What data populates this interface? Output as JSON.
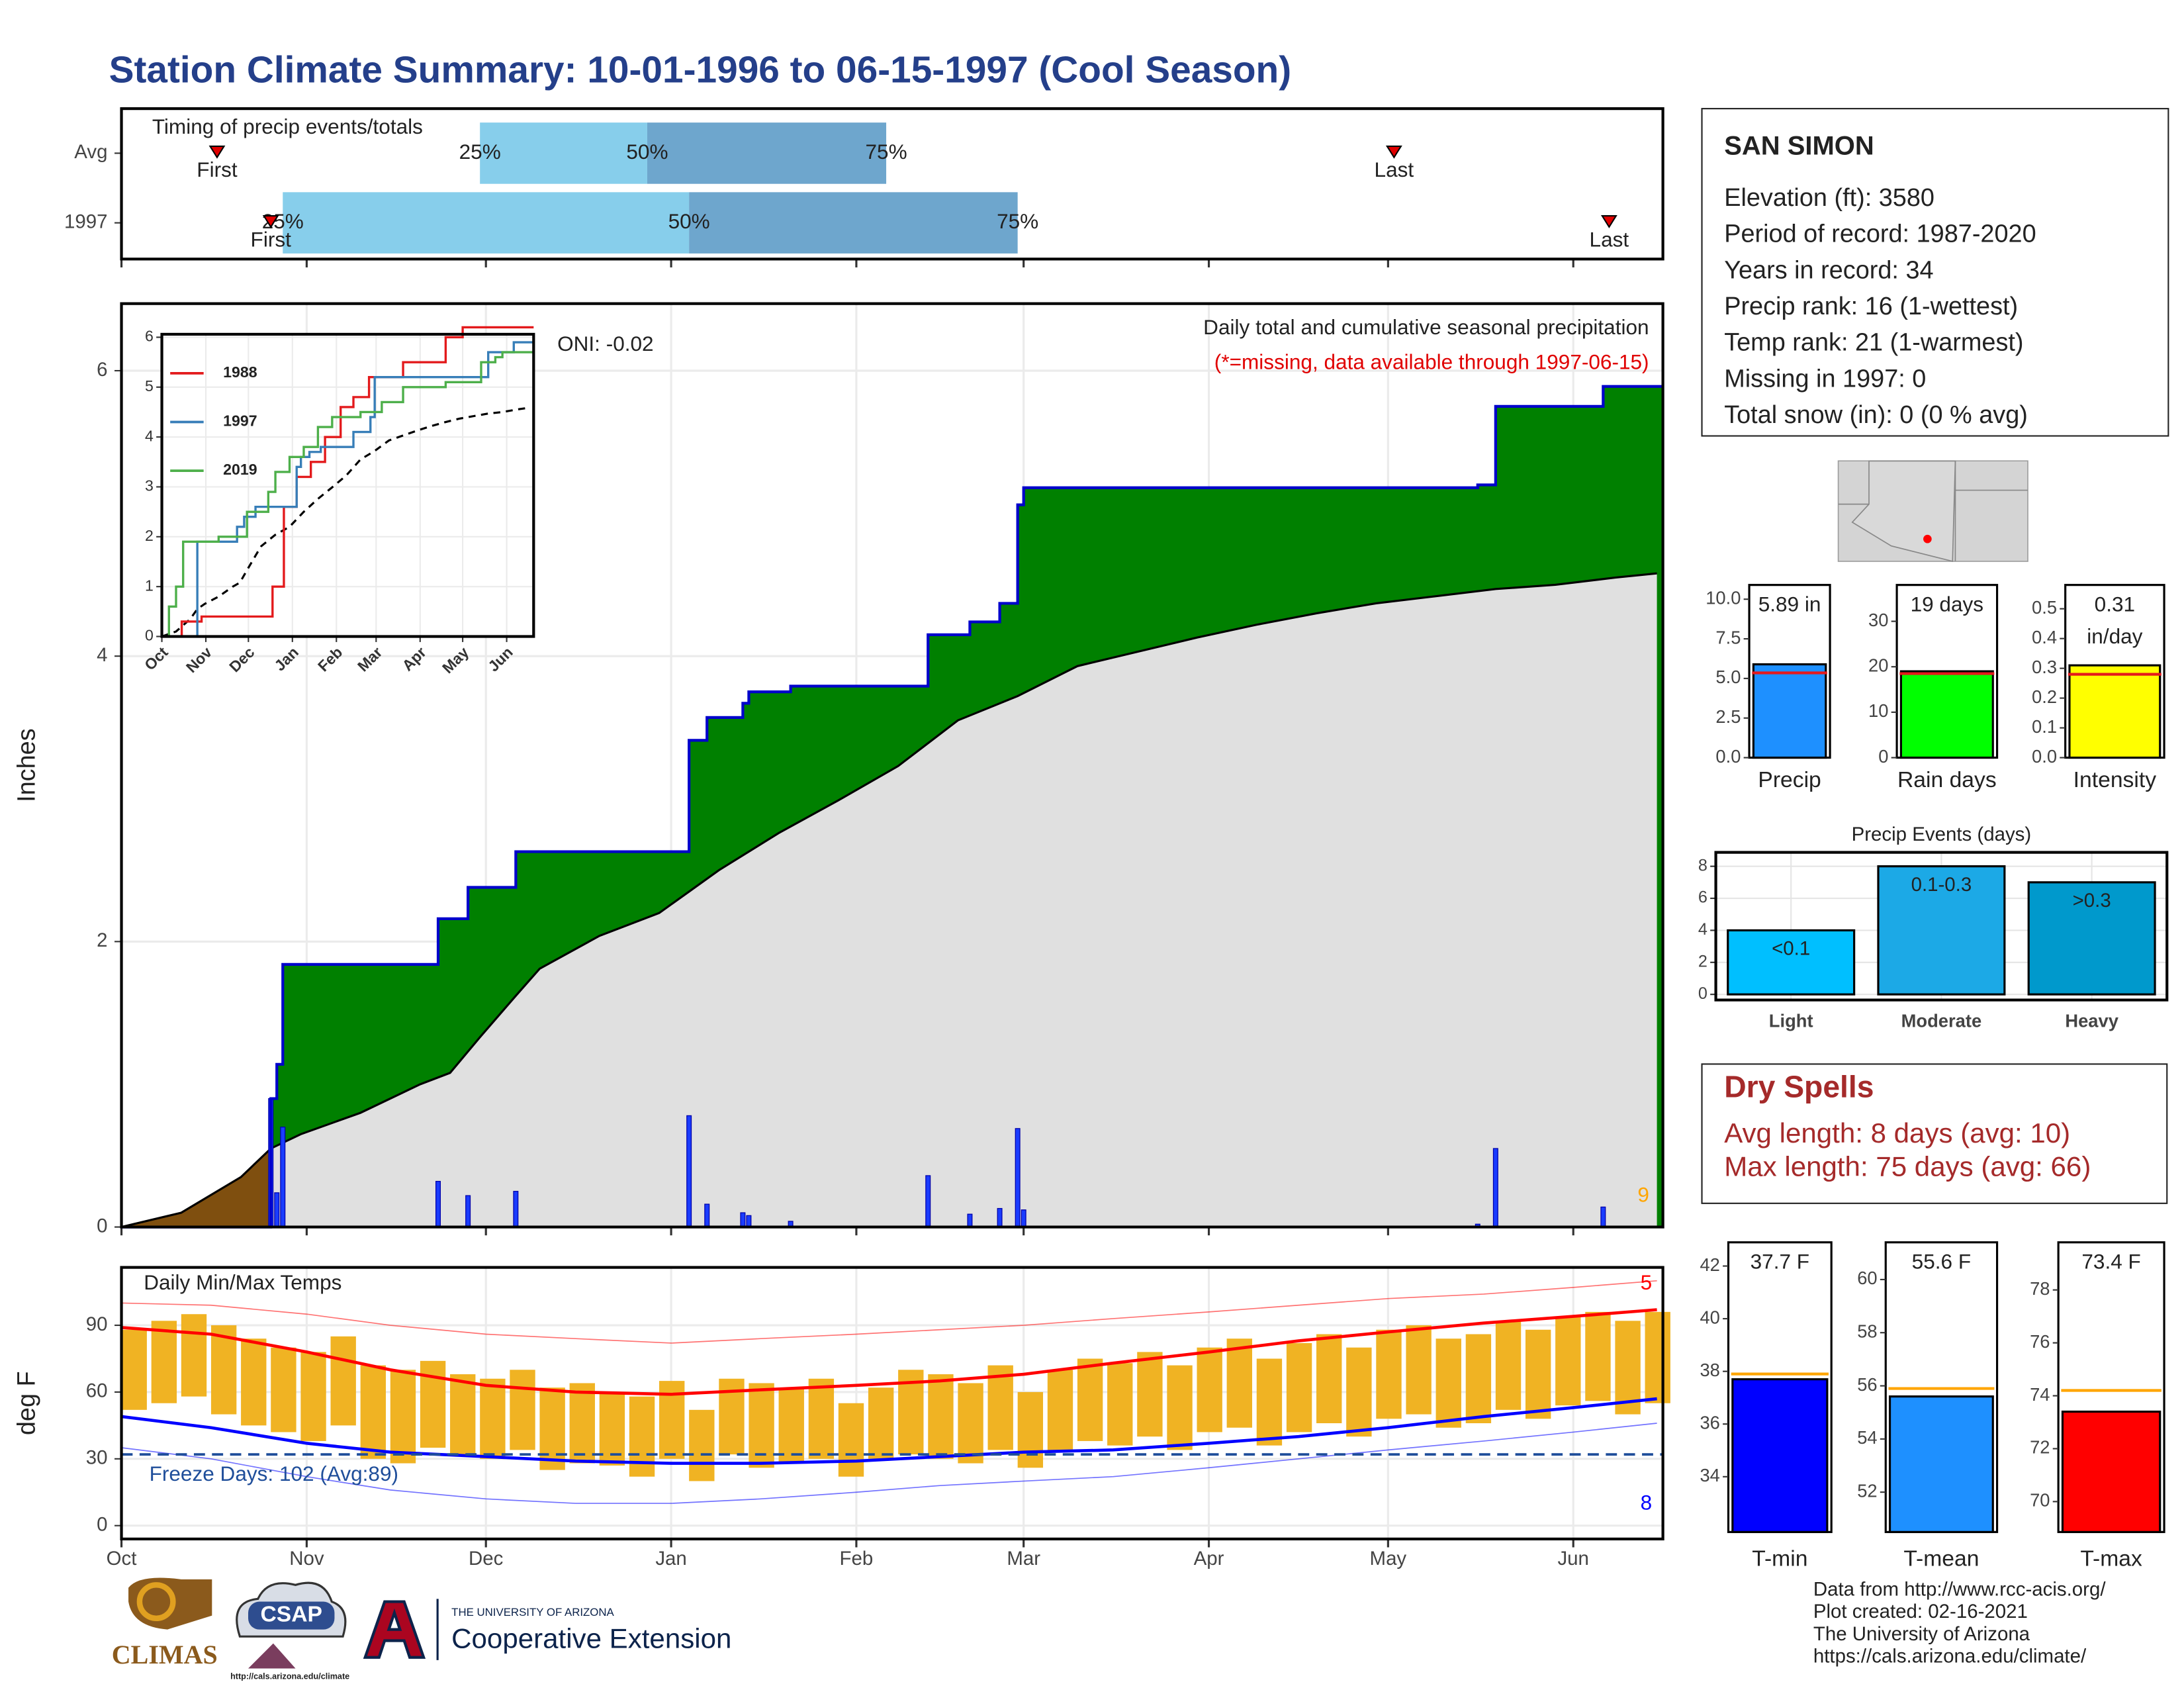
{
  "title": "Station Climate Summary: 10-01-1996 to 06-15-1997 (Cool Season)",
  "station": {
    "name": "SAN SIMON",
    "lines": [
      "Elevation (ft): 3580",
      "Period of record: 1987-2020",
      "Years in record: 34",
      "Precip rank: 16 (1-wettest)",
      "Temp rank: 21 (1-warmest)",
      "Missing in 1997: 0",
      "Total snow (in): 0 (0 % avg)"
    ]
  },
  "dry_spells": {
    "title": "Dry Spells",
    "lines": [
      "Avg length: 8 days (avg: 10)",
      "Max length: 75 days (avg: 66)"
    ]
  },
  "footer": [
    "Data from http://www.rcc-acis.org/",
    "Plot created: 02-16-2021",
    "The University of Arizona",
    "https://cals.arizona.edu/climate/"
  ],
  "logos": {
    "climas": "CLIMAS",
    "csap": "CSAP",
    "csap_url": "http://cals.arizona.edu/climate",
    "university": "THE UNIVERSITY OF ARIZONA",
    "extension": "Cooperative Extension"
  },
  "chart_data": [
    {
      "type": "timeline",
      "title": "Timing of precip events/totals",
      "rows": [
        "Avg",
        "1997"
      ],
      "labels": {
        "first": "First",
        "last": "Last",
        "q25": "25%",
        "q50": "50%",
        "q75": "75%"
      },
      "events": [
        {
          "first": 16,
          "q25": 60,
          "q50": 88,
          "q75": 128,
          "last": 213
        },
        {
          "first": 25,
          "q25": 27,
          "q50": 95,
          "q75": 150,
          "last": 249
        }
      ],
      "colors": [
        "#87ceeb",
        "#6ea6cd"
      ],
      "marker_color": "#e00000",
      "xlim": [
        0,
        258
      ],
      "xticks": [
        0,
        31,
        61,
        92,
        123,
        151,
        182,
        212,
        243
      ]
    },
    {
      "type": "area",
      "ylabel": "Inches",
      "annotation": "ONI: -0.02",
      "subtitle": "Daily total and cumulative seasonal precipitation",
      "note": "(*=missing, data available through 1997-06-15)",
      "count": 9,
      "xlim": [
        0,
        258
      ],
      "xticks": [
        0,
        31,
        61,
        92,
        123,
        151,
        182,
        212,
        243
      ],
      "ylim": [
        0,
        6.47
      ],
      "yticks": [
        0,
        2,
        4,
        6
      ],
      "grid": true,
      "event_days": [
        25,
        26,
        27,
        53,
        58,
        66,
        95,
        98,
        104,
        105,
        112,
        135,
        142,
        147,
        150,
        151,
        227,
        230,
        248
      ],
      "event_values": [
        0.9,
        0.24,
        0.7,
        0.32,
        0.22,
        0.25,
        0.78,
        0.16,
        0.1,
        0.08,
        0.04,
        0.36,
        0.09,
        0.13,
        0.69,
        0.12,
        0.02,
        0.55,
        0.14
      ],
      "avg_days": [
        0,
        10,
        20,
        25,
        30,
        40,
        50,
        55,
        60,
        66,
        70,
        80,
        90,
        95,
        100,
        110,
        120,
        130,
        140,
        150,
        160,
        170,
        180,
        190,
        200,
        210,
        220,
        230,
        240,
        250,
        257
      ],
      "avg_values": [
        0,
        0.1,
        0.35,
        0.55,
        0.65,
        0.8,
        1.0,
        1.08,
        1.33,
        1.62,
        1.81,
        2.04,
        2.2,
        2.35,
        2.5,
        2.76,
        2.99,
        3.23,
        3.55,
        3.72,
        3.93,
        4.03,
        4.13,
        4.22,
        4.3,
        4.37,
        4.42,
        4.47,
        4.5,
        4.55,
        4.58
      ],
      "bar_color": "#1a3cff",
      "line_color": "#0000cc",
      "above_color": "#008000",
      "below_color": "#7f4f0f",
      "avg_fill": "#e0e0e0",
      "count_color": "#ffa500"
    },
    {
      "type": "line",
      "xlim": [
        0,
        262
      ],
      "ylim": [
        0,
        6.06
      ],
      "yticks": [
        0,
        1,
        2,
        3,
        4,
        5,
        6
      ],
      "xticks": [
        {
          "value": 0,
          "label": "Oct"
        },
        {
          "value": 31,
          "label": "Nov"
        },
        {
          "value": 61,
          "label": "Dec"
        },
        {
          "value": 92,
          "label": "Jan"
        },
        {
          "value": 123,
          "label": "Feb"
        },
        {
          "value": 151,
          "label": "Mar"
        },
        {
          "value": 182,
          "label": "Apr"
        },
        {
          "value": 212,
          "label": "May"
        },
        {
          "value": 243,
          "label": "Jun"
        }
      ],
      "series": [
        {
          "name": "1988",
          "color": "#e31a1c",
          "x": [
            0,
            11,
            14,
            28,
            76,
            78,
            86,
            95,
            105,
            115,
            126,
            135,
            146,
            170,
            198,
            200,
            212,
            262
          ],
          "values": [
            0,
            0,
            0.3,
            0.4,
            0.4,
            1.0,
            2.6,
            3.2,
            3.5,
            4.0,
            4.6,
            4.8,
            5.2,
            5.5,
            5.5,
            6.0,
            6.2,
            6.2
          ]
        },
        {
          "name": "1997",
          "color": "#377eb8",
          "x": [
            0,
            25,
            53,
            58,
            66,
            95,
            98,
            104,
            112,
            135,
            147,
            150,
            230,
            248,
            262
          ],
          "values": [
            0,
            1.9,
            2.2,
            2.4,
            2.6,
            3.4,
            3.6,
            3.7,
            3.8,
            4.1,
            4.4,
            5.2,
            5.7,
            5.9,
            5.9
          ]
        },
        {
          "name": "2019",
          "color": "#4daf4a",
          "x": [
            0,
            5,
            10,
            15,
            40,
            60,
            75,
            80,
            90,
            100,
            110,
            120,
            140,
            155,
            170,
            200,
            225,
            235,
            240,
            262
          ],
          "values": [
            0,
            0.6,
            1.0,
            1.9,
            2.0,
            2.5,
            2.9,
            3.3,
            3.6,
            3.8,
            4.2,
            4.4,
            4.5,
            4.7,
            5.0,
            5.1,
            5.5,
            5.6,
            5.7,
            5.7
          ]
        }
      ]
    },
    {
      "type": "range",
      "title": "Daily Min/Max Temps",
      "ylabel": "deg F",
      "freeze_label": "Freeze Days: 102 (Avg:89)",
      "freeze": 32,
      "max_count": 5,
      "min_count": 8,
      "xlim": [
        0,
        258
      ],
      "xticks": [
        {
          "value": 0,
          "label": "Oct"
        },
        {
          "value": 31,
          "label": "Nov"
        },
        {
          "value": 61,
          "label": "Dec"
        },
        {
          "value": 92,
          "label": "Jan"
        },
        {
          "value": 123,
          "label": "Feb"
        },
        {
          "value": 151,
          "label": "Mar"
        },
        {
          "value": 182,
          "label": "Apr"
        },
        {
          "value": 212,
          "label": "May"
        },
        {
          "value": 243,
          "label": "Jun"
        }
      ],
      "ylim": [
        -6,
        116
      ],
      "yticks": [
        0,
        30,
        60,
        90
      ],
      "grid": true,
      "days": [
        0,
        5,
        10,
        15,
        20,
        25,
        30,
        35,
        40,
        45,
        50,
        55,
        60,
        65,
        70,
        75,
        80,
        85,
        90,
        95,
        100,
        105,
        110,
        115,
        120,
        125,
        130,
        135,
        140,
        145,
        150,
        155,
        160,
        165,
        170,
        175,
        180,
        185,
        190,
        195,
        200,
        205,
        210,
        215,
        220,
        225,
        230,
        235,
        240,
        245,
        250,
        255
      ],
      "tmax": [
        88,
        92,
        95,
        90,
        84,
        80,
        78,
        85,
        72,
        70,
        74,
        68,
        66,
        70,
        62,
        64,
        60,
        58,
        65,
        52,
        66,
        64,
        62,
        66,
        55,
        62,
        70,
        68,
        64,
        72,
        60,
        70,
        75,
        73,
        78,
        72,
        80,
        84,
        75,
        82,
        86,
        80,
        88,
        90,
        84,
        86,
        92,
        88,
        94,
        96,
        92,
        96
      ],
      "tmin": [
        52,
        55,
        58,
        50,
        45,
        42,
        38,
        45,
        30,
        28,
        35,
        32,
        30,
        34,
        25,
        28,
        27,
        22,
        30,
        20,
        32,
        26,
        28,
        30,
        22,
        30,
        32,
        30,
        28,
        34,
        26,
        33,
        38,
        36,
        40,
        34,
        42,
        44,
        36,
        42,
        46,
        40,
        48,
        50,
        44,
        46,
        52,
        48,
        54,
        56,
        50,
        55
      ],
      "normal_days": [
        0,
        15,
        31,
        45,
        61,
        76,
        92,
        107,
        123,
        137,
        151,
        166,
        182,
        197,
        212,
        228,
        243,
        257
      ],
      "avg_max": [
        89,
        86,
        78,
        70,
        63,
        60,
        59,
        61,
        63,
        65,
        68,
        73,
        78,
        83,
        87,
        91,
        94,
        97
      ],
      "avg_min": [
        49,
        44,
        37,
        33,
        31,
        29,
        28,
        28,
        29,
        31,
        33,
        34,
        37,
        40,
        44,
        49,
        53,
        57
      ],
      "record_max": [
        100,
        99,
        95,
        90,
        86,
        84,
        82,
        84,
        86,
        88,
        90,
        93,
        96,
        99,
        102,
        104,
        107,
        110
      ],
      "record_min": [
        35,
        30,
        22,
        16,
        12,
        10,
        10,
        12,
        15,
        18,
        20,
        22,
        26,
        30,
        34,
        38,
        42,
        46
      ],
      "bar_color": "#f0b323",
      "max_color": "#ff0000",
      "min_color": "#0000ff",
      "freeze_color": "#1f4e9a"
    },
    {
      "type": "gauge",
      "avg_color": "#e41a1c",
      "panels": [
        {
          "label": "Precip",
          "value": 5.89,
          "value_label": "5.89 in",
          "avg": 5.35,
          "color": "#1e90ff",
          "ylim": [
            0,
            10.9
          ],
          "yticks": [
            {
              "value": 0,
              "label": "0.0"
            },
            2.5,
            {
              "value": 5,
              "label": "5.0"
            },
            7.5,
            {
              "value": 10,
              "label": "10.0"
            }
          ]
        },
        {
          "label": "Rain days",
          "value": 19,
          "value_label": "19 days",
          "avg": 18.5,
          "color": "#00ff00",
          "ylim": [
            0,
            38
          ],
          "yticks": [
            0,
            10,
            20,
            30
          ]
        },
        {
          "label": "Intensity",
          "value": 0.31,
          "value_label": "0.31",
          "unit": "in/day",
          "avg": 0.28,
          "color": "#ffff00",
          "ylim": [
            0,
            0.58
          ],
          "yticks": [
            {
              "value": 0,
              "label": "0.0"
            },
            0.1,
            0.2,
            0.3,
            0.4,
            0.5
          ]
        }
      ]
    },
    {
      "type": "bar",
      "title": "Precip Events (days)",
      "categories": [
        "Light",
        "Moderate",
        "Heavy"
      ],
      "values": [
        4,
        8,
        7
      ],
      "bar_labels": [
        "<0.1",
        "0.1-0.3",
        ">0.3"
      ],
      "colors": [
        "#00bfff",
        "#1ca9e6",
        "#0099cc"
      ],
      "ylim": [
        -0.35,
        8.87
      ],
      "yticks": [
        0,
        2,
        4,
        6,
        8
      ],
      "grid": true
    },
    {
      "type": "gauge",
      "avg_color": "#ffa500",
      "panels": [
        {
          "label": "T-min",
          "value": 37.7,
          "value_label": "37.7 F",
          "avg": 37.9,
          "color": "#0000ff",
          "ylim": [
            31.9,
            42.9
          ],
          "yticks": [
            34,
            36,
            38,
            40,
            42
          ]
        },
        {
          "label": "T-mean",
          "value": 55.6,
          "value_label": "55.6 F",
          "avg": 55.9,
          "color": "#1e90ff",
          "ylim": [
            50.5,
            61.4
          ],
          "yticks": [
            52,
            54,
            56,
            58,
            60
          ]
        },
        {
          "label": "T-max",
          "value": 73.4,
          "value_label": "73.4 F",
          "avg": 74.2,
          "color": "#ff0000",
          "ylim": [
            68.85,
            79.8
          ],
          "yticks": [
            70,
            72,
            74,
            76,
            78
          ]
        }
      ]
    }
  ]
}
